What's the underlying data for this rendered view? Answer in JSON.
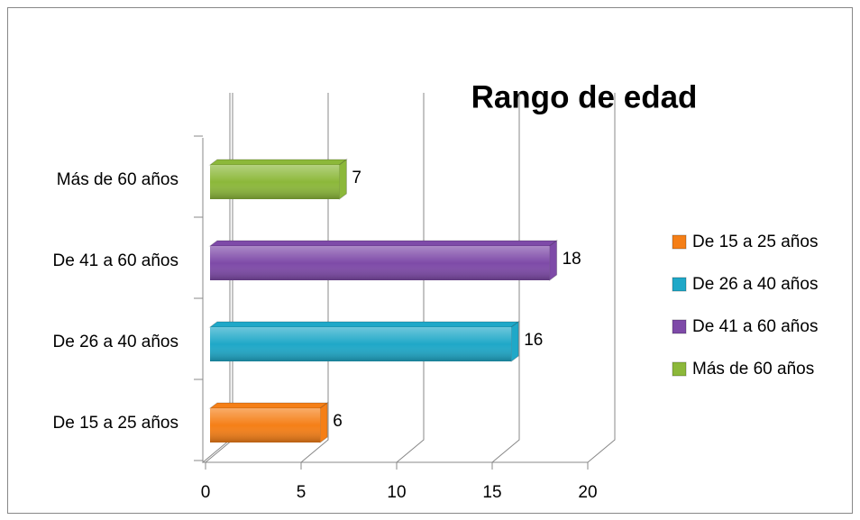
{
  "chart_data": {
    "type": "bar",
    "orientation": "horizontal",
    "title": "Rango de edad",
    "categories": [
      "De 15 a 25 años",
      "De 26 a 40 años",
      "De 41 a 60 años",
      "Más de 60 años"
    ],
    "values": [
      6,
      16,
      18,
      7
    ],
    "colors": [
      "#f57f17",
      "#1fa8c8",
      "#7e4aa8",
      "#8cb83a"
    ],
    "xlim": [
      0,
      20
    ],
    "xticks": [
      0,
      5,
      10,
      15,
      20
    ],
    "grid": true,
    "legend": "right"
  }
}
